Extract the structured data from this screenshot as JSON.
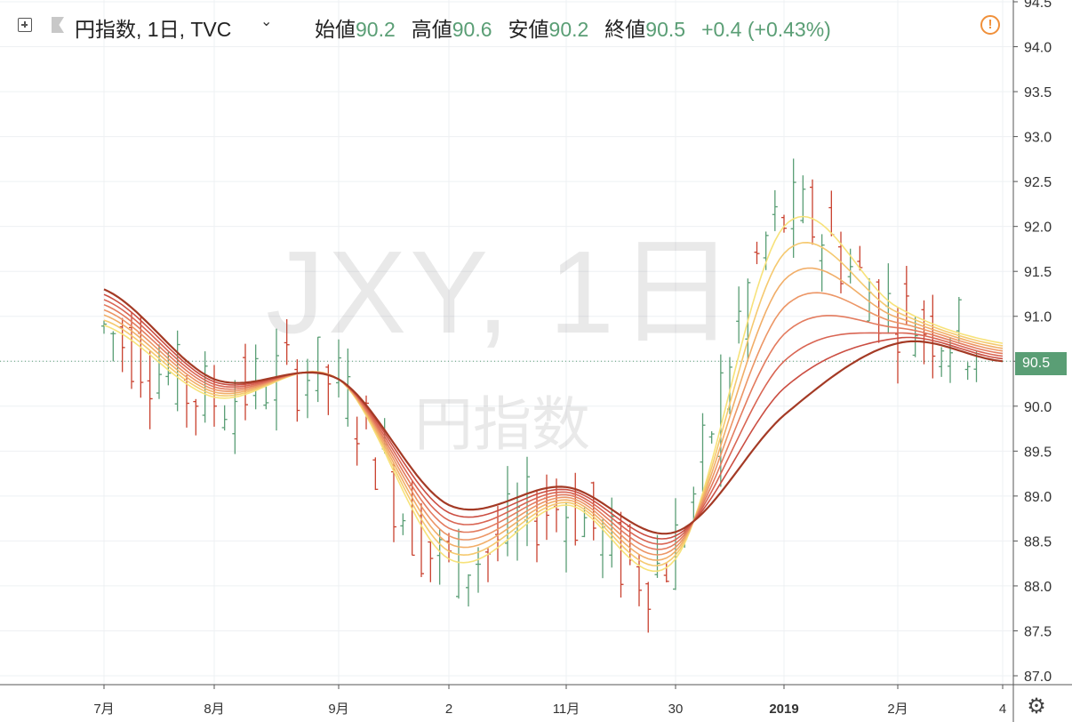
{
  "header": {
    "symbol": "円指数, 1日, TVC",
    "caret": "⌄",
    "open_label": "始値",
    "open_value": "90.2",
    "high_label": "高値",
    "high_value": "90.6",
    "low_label": "安値",
    "low_value": "90.2",
    "close_label": "終値",
    "close_value": "90.5",
    "change": "+0.4 (+0.43%)"
  },
  "watermark": {
    "main": "JXY, 1日",
    "sub": "円指数"
  },
  "alert_icon": "!",
  "settings_icon": "⚙",
  "colors": {
    "up": "#5a9e75",
    "down": "#c9412f",
    "ribbon": [
      "#f7e27a",
      "#f5c96f",
      "#f1ae68",
      "#ec9666",
      "#e37b5e",
      "#d96553",
      "#cb4e42",
      "#a43a25"
    ]
  },
  "chart_data": {
    "type": "line",
    "title": "円指数, 1日, TVC",
    "y_axis": {
      "min": 87.0,
      "max": 94.5,
      "ticks": [
        "87.0",
        "87.5",
        "88.0",
        "88.5",
        "89.0",
        "89.5",
        "90.0",
        "90.5",
        "91.0",
        "91.5",
        "92.0",
        "92.5",
        "93.0",
        "93.5",
        "94.0",
        "94.5"
      ]
    },
    "x_axis": {
      "labels": [
        "7月",
        "8月",
        "9月",
        "2",
        "11月",
        "30",
        "2019",
        "2月",
        "4"
      ],
      "bold_labels": [
        "2019"
      ]
    },
    "last_price": "90.5",
    "grid": true,
    "series": [
      {
        "name": "",
        "x": [
          "7月",
          "8月",
          "9月",
          "2",
          "11月",
          "30",
          "2019",
          "2月",
          "4"
        ],
        "values": [
          90.9,
          90.1,
          90.3,
          88.3,
          88.9,
          88.3,
          92.0,
          91.1,
          90.7
        ]
      },
      {
        "name": "",
        "x": [
          "7月",
          "8月",
          "9月",
          "2",
          "11月",
          "30",
          "2019",
          "2月",
          "4"
        ],
        "values": [
          91.3,
          90.3,
          90.3,
          88.9,
          89.1,
          88.6,
          89.9,
          90.7,
          90.5
        ]
      }
    ]
  }
}
